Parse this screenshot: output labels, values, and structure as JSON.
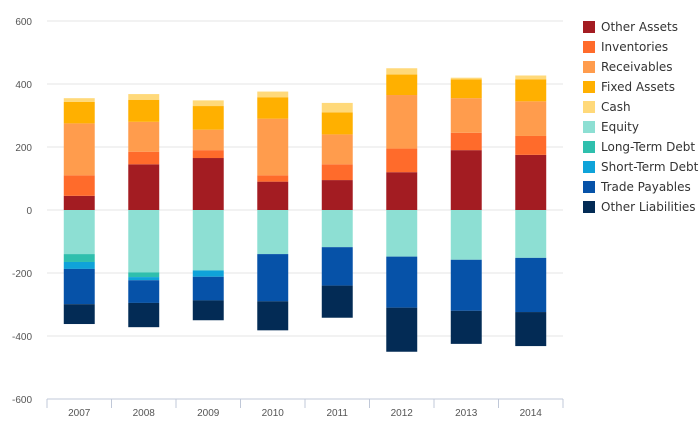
{
  "chart_data": {
    "type": "bar",
    "stacked": true,
    "categories": [
      "2007",
      "2008",
      "2009",
      "2010",
      "2011",
      "2012",
      "2013",
      "2014"
    ],
    "ylim": [
      -600,
      600
    ],
    "yticks": [
      600,
      400,
      200,
      0,
      -200,
      -400,
      -600
    ],
    "grid": true,
    "legend_position": "right",
    "series": [
      {
        "name": "Other Assets",
        "color": "#a31c22",
        "values": [
          45,
          145,
          165,
          90,
          95,
          120,
          190,
          175
        ]
      },
      {
        "name": "Inventories",
        "color": "#ff6b2b",
        "values": [
          65,
          40,
          25,
          20,
          50,
          75,
          55,
          60
        ]
      },
      {
        "name": "Receivables",
        "color": "#ff9c4d",
        "values": [
          165,
          95,
          65,
          180,
          95,
          170,
          110,
          110
        ]
      },
      {
        "name": "Fixed Assets",
        "color": "#ffb000",
        "values": [
          68,
          70,
          75,
          68,
          70,
          65,
          60,
          70
        ]
      },
      {
        "name": "Cash",
        "color": "#ffd97a",
        "values": [
          12,
          18,
          18,
          18,
          30,
          20,
          5,
          12
        ]
      },
      {
        "name": "Equity",
        "color": "#8ddfd3",
        "values": [
          -140,
          -198,
          -192,
          -140,
          -118,
          -148,
          -158,
          -152
        ]
      },
      {
        "name": "Long-Term Debt",
        "color": "#2fbfad",
        "values": [
          -25,
          -15,
          0,
          0,
          0,
          0,
          0,
          0
        ]
      },
      {
        "name": "Short-Term Debt",
        "color": "#0fa3d9",
        "values": [
          -22,
          -10,
          -20,
          0,
          0,
          0,
          0,
          0
        ]
      },
      {
        "name": "Trade Payables",
        "color": "#0652a8",
        "values": [
          -112,
          -72,
          -75,
          -150,
          -122,
          -162,
          -162,
          -172
        ]
      },
      {
        "name": "Other Liabilities",
        "color": "#032b55",
        "values": [
          -63,
          -77,
          -63,
          -92,
          -102,
          -140,
          -105,
          -108
        ]
      }
    ]
  }
}
